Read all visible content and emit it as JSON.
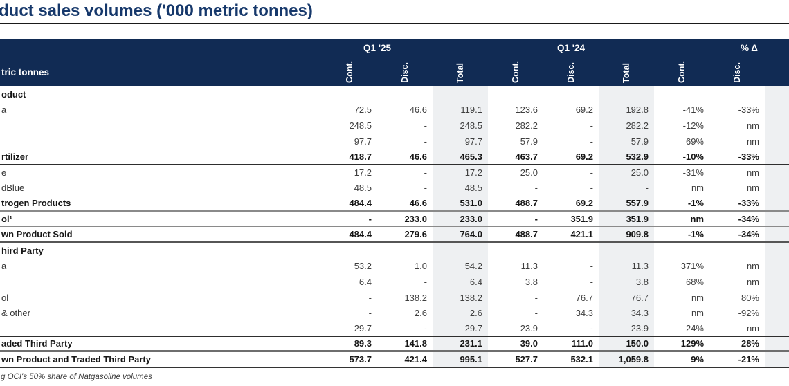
{
  "title": "duct sales volumes ('000 metric tonnes)",
  "header": {
    "units_label": "tric tonnes",
    "groups": [
      "Q1 '25",
      "Q1 '24",
      "% Δ"
    ],
    "columns": [
      "Cont.",
      "Disc.",
      "Total",
      "Cont.",
      "Disc.",
      "Total",
      "Cont.",
      "Disc."
    ]
  },
  "rows": [
    {
      "label": "oduct",
      "emphasis": "section",
      "border": "none",
      "values": [
        "",
        "",
        "",
        "",
        "",
        "",
        "",
        ""
      ]
    },
    {
      "label": "a",
      "emphasis": "item",
      "border": "none",
      "values": [
        "72.5",
        "46.6",
        "119.1",
        "123.6",
        "69.2",
        "192.8",
        "-41%",
        "-33%"
      ]
    },
    {
      "label": "",
      "emphasis": "item",
      "border": "none",
      "values": [
        "248.5",
        "-",
        "248.5",
        "282.2",
        "-",
        "282.2",
        "-12%",
        "nm"
      ]
    },
    {
      "label": "",
      "emphasis": "item",
      "border": "none",
      "values": [
        "97.7",
        "-",
        "97.7",
        "57.9",
        "-",
        "57.9",
        "69%",
        "nm"
      ]
    },
    {
      "label": "rtilizer",
      "emphasis": "total",
      "border": "thin",
      "values": [
        "418.7",
        "46.6",
        "465.3",
        "463.7",
        "69.2",
        "532.9",
        "-10%",
        "-33%"
      ]
    },
    {
      "label": "e",
      "emphasis": "item",
      "border": "none",
      "values": [
        "17.2",
        "-",
        "17.2",
        "25.0",
        "-",
        "25.0",
        "-31%",
        "nm"
      ]
    },
    {
      "label": "dBlue",
      "emphasis": "item",
      "border": "none",
      "values": [
        "48.5",
        "-",
        "48.5",
        "-",
        "-",
        "-",
        "nm",
        "nm"
      ]
    },
    {
      "label": "trogen Products",
      "emphasis": "total",
      "border": "gray",
      "values": [
        "484.4",
        "46.6",
        "531.0",
        "488.7",
        "69.2",
        "557.9",
        "-1%",
        "-33%"
      ]
    },
    {
      "label": "ol¹",
      "emphasis": "total",
      "border": "gray",
      "values": [
        "-",
        "233.0",
        "233.0",
        "-",
        "351.9",
        "351.9",
        "nm",
        "-34%"
      ]
    },
    {
      "label": "wn Product Sold",
      "emphasis": "total",
      "border": "heavy",
      "values": [
        "484.4",
        "279.6",
        "764.0",
        "488.7",
        "421.1",
        "909.8",
        "-1%",
        "-34%"
      ]
    },
    {
      "label": "hird Party",
      "emphasis": "section",
      "border": "none",
      "values": [
        "",
        "",
        "",
        "",
        "",
        "",
        "",
        ""
      ]
    },
    {
      "label": "a",
      "emphasis": "item",
      "border": "none",
      "values": [
        "53.2",
        "1.0",
        "54.2",
        "11.3",
        "-",
        "11.3",
        "371%",
        "nm"
      ]
    },
    {
      "label": "",
      "emphasis": "item",
      "border": "none",
      "values": [
        "6.4",
        "-",
        "6.4",
        "3.8",
        "-",
        "3.8",
        "68%",
        "nm"
      ]
    },
    {
      "label": "ol",
      "emphasis": "item",
      "border": "none",
      "values": [
        "-",
        "138.2",
        "138.2",
        "-",
        "76.7",
        "76.7",
        "nm",
        "80%"
      ]
    },
    {
      "label": "& other",
      "emphasis": "item",
      "border": "none",
      "values": [
        "-",
        "2.6",
        "2.6",
        "-",
        "34.3",
        "34.3",
        "nm",
        "-92%"
      ]
    },
    {
      "label": "",
      "emphasis": "item",
      "border": "thin",
      "values": [
        "29.7",
        "-",
        "29.7",
        "23.9",
        "-",
        "23.9",
        "24%",
        "nm"
      ]
    },
    {
      "label": "aded Third Party",
      "emphasis": "total",
      "border": "gray3",
      "values": [
        "89.3",
        "141.8",
        "231.1",
        "39.0",
        "111.0",
        "150.0",
        "129%",
        "28%"
      ]
    },
    {
      "label": "wn Product and Traded Third Party",
      "emphasis": "total",
      "border": "dark",
      "values": [
        "573.7",
        "421.4",
        "995.1",
        "527.7",
        "532.1",
        "1,059.8",
        "9%",
        "-21%"
      ]
    }
  ],
  "footnote": "g OCI's 50% share of Natgasoline volumes",
  "colors": {
    "header_background": "#112b54",
    "title_text": "#16386b",
    "shaded_column": "#eef0f2",
    "body_text": "#3f3f3f",
    "emphasis_text": "#161616"
  }
}
